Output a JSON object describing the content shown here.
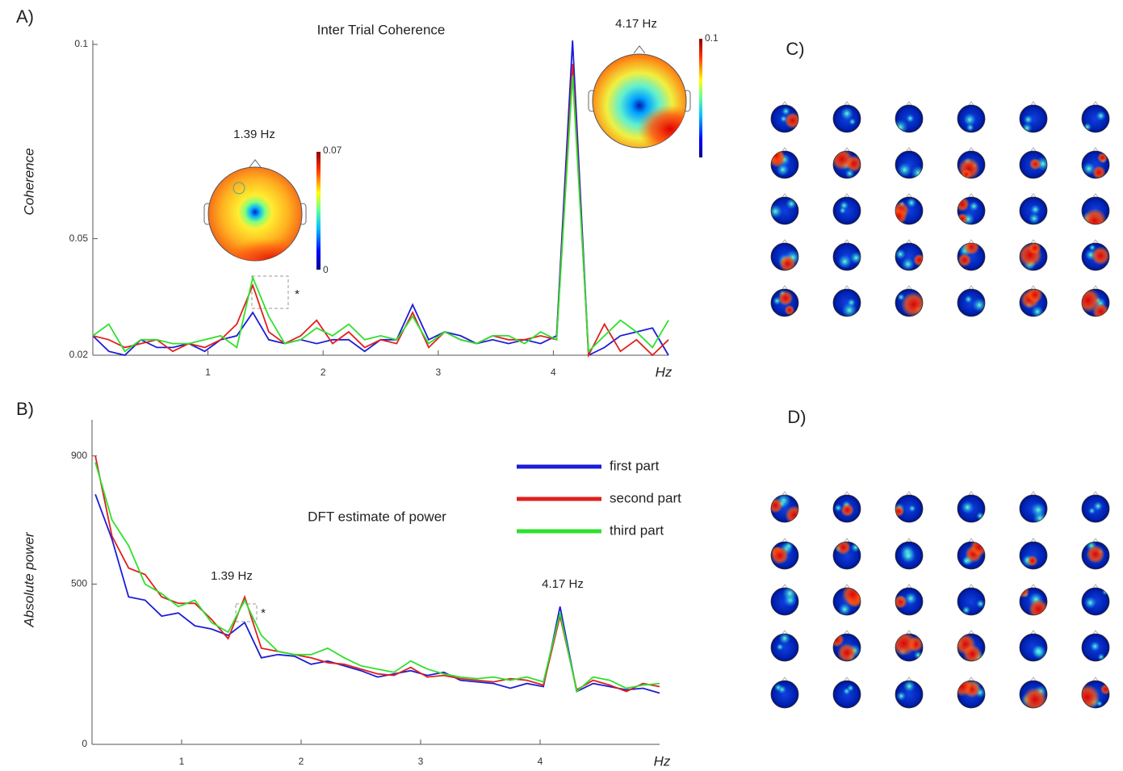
{
  "chart_data": [
    {
      "type": "line",
      "panel": "A)",
      "title": "Inter Trial Coherence",
      "ylabel": "Coherence",
      "xlabel": "Hz",
      "x": [
        0,
        0.139,
        0.278,
        0.417,
        0.556,
        0.694,
        0.833,
        0.972,
        1.111,
        1.25,
        1.389,
        1.528,
        1.667,
        1.806,
        1.944,
        2.083,
        2.222,
        2.361,
        2.5,
        2.639,
        2.778,
        2.917,
        3.056,
        3.194,
        3.333,
        3.472,
        3.611,
        3.75,
        3.889,
        4.028,
        4.167,
        4.306,
        4.444,
        4.583,
        4.722,
        4.861,
        5.0
      ],
      "xlim": [
        0,
        5
      ],
      "xticks": [
        1,
        2,
        3,
        4
      ],
      "ylim": [
        0.02,
        0.1
      ],
      "yticks": [
        0.02,
        0.05,
        0.1
      ],
      "series": [
        {
          "color": "#1c1cd8",
          "values": [
            0.025,
            0.021,
            0.02,
            0.024,
            0.022,
            0.022,
            0.023,
            0.021,
            0.024,
            0.025,
            0.031,
            0.024,
            0.023,
            0.024,
            0.023,
            0.024,
            0.024,
            0.021,
            0.024,
            0.024,
            0.033,
            0.024,
            0.026,
            0.025,
            0.023,
            0.024,
            0.023,
            0.024,
            0.023,
            0.025,
            0.101,
            0.02,
            0.022,
            0.025,
            0.026,
            0.027,
            0.02
          ]
        },
        {
          "color": "#e0201e",
          "values": [
            0.025,
            0.024,
            0.022,
            0.023,
            0.024,
            0.021,
            0.023,
            0.022,
            0.024,
            0.028,
            0.038,
            0.026,
            0.023,
            0.025,
            0.029,
            0.023,
            0.026,
            0.022,
            0.024,
            0.023,
            0.031,
            0.022,
            0.026,
            0.024,
            0.023,
            0.025,
            0.024,
            0.024,
            0.025,
            0.024,
            0.095,
            0.02,
            0.028,
            0.021,
            0.024,
            0.02,
            0.024
          ]
        },
        {
          "color": "#2ee02e",
          "values": [
            0.025,
            0.028,
            0.021,
            0.024,
            0.024,
            0.023,
            0.023,
            0.024,
            0.025,
            0.022,
            0.04,
            0.03,
            0.023,
            0.024,
            0.027,
            0.025,
            0.028,
            0.024,
            0.025,
            0.024,
            0.03,
            0.023,
            0.026,
            0.024,
            0.023,
            0.025,
            0.025,
            0.023,
            0.026,
            0.024,
            0.092,
            0.021,
            0.025,
            0.029,
            0.026,
            0.022,
            0.029
          ]
        }
      ],
      "annotations": [
        "1.39 Hz",
        "4.17 Hz",
        "*"
      ],
      "colorbar_labels": [
        0.07,
        0,
        0.1
      ]
    },
    {
      "type": "line",
      "panel": "B)",
      "title": "DFT estimate of power",
      "ylabel": "Absolute power",
      "xlabel": "Hz",
      "x": [
        0.278,
        0.417,
        0.556,
        0.694,
        0.833,
        0.972,
        1.111,
        1.25,
        1.389,
        1.528,
        1.667,
        1.806,
        1.944,
        2.083,
        2.222,
        2.361,
        2.5,
        2.639,
        2.778,
        2.917,
        3.056,
        3.194,
        3.333,
        3.472,
        3.611,
        3.75,
        3.889,
        4.028,
        4.167,
        4.306,
        4.444,
        4.583,
        4.722,
        4.861,
        5.0
      ],
      "xlim": [
        0.25,
        5
      ],
      "xticks": [
        1,
        2,
        3,
        4
      ],
      "ylim": [
        0,
        1000
      ],
      "yticks": [
        0,
        500,
        900
      ],
      "legend": "upper right",
      "series": [
        {
          "name": "first part",
          "color": "#1c1cd8",
          "values": [
            780,
            640,
            460,
            450,
            400,
            410,
            370,
            360,
            340,
            380,
            270,
            280,
            275,
            250,
            260,
            245,
            230,
            210,
            220,
            230,
            215,
            225,
            200,
            195,
            190,
            175,
            190,
            180,
            430,
            165,
            190,
            180,
            170,
            175,
            160
          ]
        },
        {
          "name": "second part",
          "color": "#e0201e",
          "values": [
            900,
            650,
            550,
            530,
            460,
            440,
            440,
            390,
            330,
            460,
            300,
            290,
            280,
            270,
            255,
            250,
            235,
            220,
            215,
            240,
            210,
            215,
            205,
            200,
            195,
            205,
            200,
            185,
            400,
            170,
            200,
            185,
            165,
            190,
            180
          ]
        },
        {
          "name": "third part",
          "color": "#2ee02e",
          "values": [
            880,
            700,
            620,
            500,
            470,
            430,
            450,
            380,
            350,
            450,
            340,
            290,
            280,
            280,
            300,
            270,
            245,
            235,
            225,
            260,
            235,
            220,
            210,
            205,
            210,
            200,
            210,
            195,
            410,
            165,
            210,
            200,
            175,
            185,
            190
          ]
        }
      ],
      "annotations": [
        "1.39 Hz",
        "4.17 Hz",
        "*"
      ]
    }
  ],
  "topomap_panels": [
    {
      "label": "C)"
    },
    {
      "label": "D)"
    }
  ]
}
